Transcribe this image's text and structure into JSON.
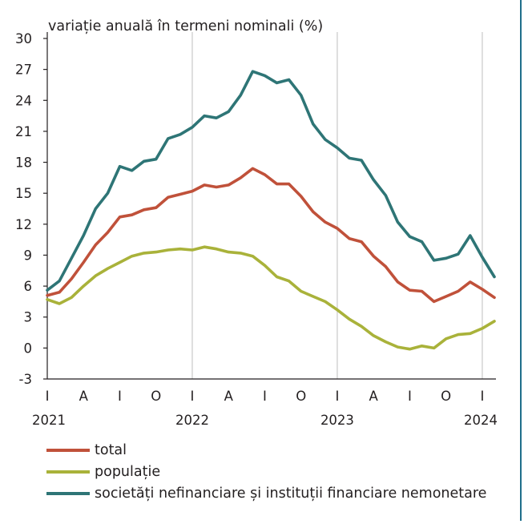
{
  "chart_data": {
    "type": "line",
    "ylabel": "variație anuală în termeni nominali (%)",
    "ylim": [
      -3,
      30
    ],
    "yticks": [
      "30",
      "27",
      "24",
      "21",
      "18",
      "15",
      "12",
      "9",
      "6",
      "3",
      "0",
      "-3"
    ],
    "grid": "vertical at year boundaries",
    "legend_position": "bottom",
    "x_quarter_ticks": [
      {
        "m": 0,
        "label": "I"
      },
      {
        "m": 3,
        "label": "A"
      },
      {
        "m": 6,
        "label": "I"
      },
      {
        "m": 9,
        "label": "O"
      },
      {
        "m": 12,
        "label": "I"
      },
      {
        "m": 15,
        "label": "A"
      },
      {
        "m": 18,
        "label": "I"
      },
      {
        "m": 21,
        "label": "O"
      },
      {
        "m": 24,
        "label": "I"
      },
      {
        "m": 27,
        "label": "A"
      },
      {
        "m": 30,
        "label": "I"
      },
      {
        "m": 33,
        "label": "O"
      },
      {
        "m": 36,
        "label": "I"
      }
    ],
    "x_years": [
      {
        "m": 0,
        "label": "2021"
      },
      {
        "m": 12,
        "label": "2022"
      },
      {
        "m": 24,
        "label": "2023"
      },
      {
        "m": 36,
        "label": "2024"
      }
    ],
    "x_months": [
      "2021-01",
      "2021-02",
      "2021-03",
      "2021-04",
      "2021-05",
      "2021-06",
      "2021-07",
      "2021-08",
      "2021-09",
      "2021-10",
      "2021-11",
      "2021-12",
      "2022-01",
      "2022-02",
      "2022-03",
      "2022-04",
      "2022-05",
      "2022-06",
      "2022-07",
      "2022-08",
      "2022-09",
      "2022-10",
      "2022-11",
      "2022-12",
      "2023-01",
      "2023-02",
      "2023-03",
      "2023-04",
      "2023-05",
      "2023-06",
      "2023-07",
      "2023-08",
      "2023-09",
      "2023-10",
      "2023-11",
      "2023-12",
      "2024-01",
      "2024-02"
    ],
    "series": [
      {
        "name": "total",
        "color": "#c0513a",
        "values": [
          5.1,
          5.4,
          6.7,
          8.3,
          10.0,
          11.2,
          12.7,
          12.9,
          13.4,
          13.6,
          14.6,
          14.9,
          15.2,
          15.8,
          15.6,
          15.8,
          16.5,
          17.4,
          16.8,
          15.9,
          15.9,
          14.7,
          13.2,
          12.2,
          11.6,
          10.6,
          10.3,
          8.9,
          7.9,
          6.4,
          5.6,
          5.5,
          4.5,
          5.0,
          5.5,
          6.4,
          5.7,
          4.9
        ]
      },
      {
        "name": "populație",
        "color": "#a9b23a",
        "values": [
          4.7,
          4.3,
          4.9,
          6.0,
          7.0,
          7.7,
          8.3,
          8.9,
          9.2,
          9.3,
          9.5,
          9.6,
          9.5,
          9.8,
          9.6,
          9.3,
          9.2,
          8.9,
          8.0,
          6.9,
          6.5,
          5.5,
          5.0,
          4.5,
          3.7,
          2.8,
          2.1,
          1.2,
          0.6,
          0.1,
          -0.1,
          0.2,
          0.0,
          0.9,
          1.3,
          1.4,
          1.9,
          2.6
        ]
      },
      {
        "name": "societăți nefinanciare și instituții financiare nemonetare",
        "color": "#2e7576",
        "values": [
          5.6,
          6.5,
          8.7,
          10.9,
          13.5,
          15.0,
          17.6,
          17.2,
          18.1,
          18.3,
          20.3,
          20.7,
          21.4,
          22.5,
          22.3,
          22.9,
          24.5,
          26.8,
          26.4,
          25.7,
          26.0,
          24.5,
          21.7,
          20.2,
          19.4,
          18.4,
          18.2,
          16.3,
          14.8,
          12.2,
          10.8,
          10.3,
          8.5,
          8.7,
          9.1,
          10.9,
          8.8,
          6.9
        ]
      }
    ]
  }
}
